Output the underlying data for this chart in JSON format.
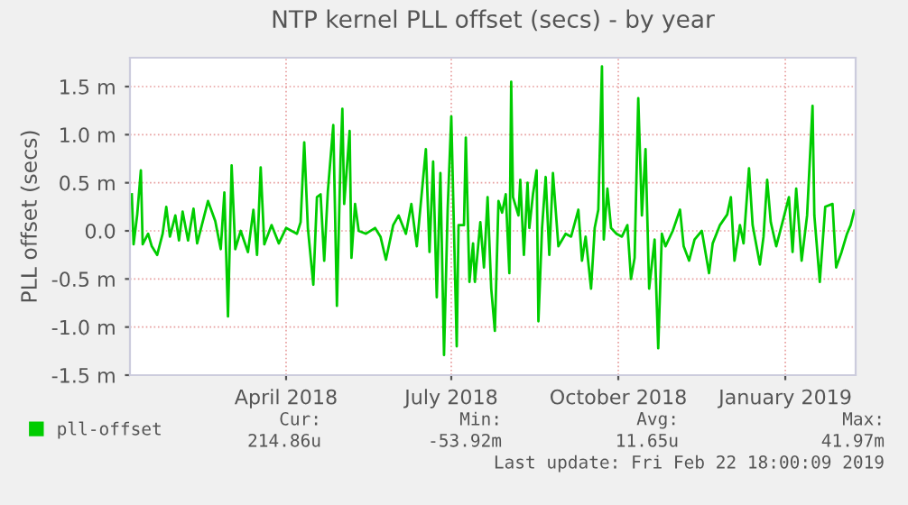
{
  "chart_data": {
    "type": "line",
    "title": "NTP kernel PLL offset (secs) - by year",
    "ylabel": "PLL offset (secs)",
    "xlim": [
      "2018-01-19",
      "2019-02-22T18:00"
    ],
    "xticks": [
      {
        "value": "2018-04-15",
        "label": "April 2018"
      },
      {
        "value": "2018-07-15",
        "label": "July 2018"
      },
      {
        "value": "2018-10-15",
        "label": "October 2018"
      },
      {
        "value": "2019-01-15",
        "label": "January 2019"
      }
    ],
    "ylim": [
      -1.5,
      1.8
    ],
    "yticks": [
      {
        "value": -1.5,
        "label": "-1.5 m"
      },
      {
        "value": -1.0,
        "label": "-1.0 m"
      },
      {
        "value": -0.5,
        "label": "-0.5 m"
      },
      {
        "value": 0,
        "label": "0.0"
      },
      {
        "value": 0.5,
        "label": "0.5 m"
      },
      {
        "value": 1.0,
        "label": "1.0 m"
      },
      {
        "value": 1.5,
        "label": "1.5 m"
      }
    ],
    "grid": true,
    "legend": "bottom left",
    "x": [
      "2018-01-20",
      "2018-01-21",
      "2018-01-23",
      "2018-01-25",
      "2018-01-26",
      "2018-01-29",
      "2018-01-31",
      "2018-02-03",
      "2018-02-06",
      "2018-02-08",
      "2018-02-10",
      "2018-02-13",
      "2018-02-15",
      "2018-02-17",
      "2018-02-20",
      "2018-02-23",
      "2018-02-25",
      "2018-03-03",
      "2018-03-07",
      "2018-03-10",
      "2018-03-12",
      "2018-03-14",
      "2018-03-16",
      "2018-03-18",
      "2018-03-21",
      "2018-03-25",
      "2018-03-28",
      "2018-03-30",
      "2018-04-01",
      "2018-04-03",
      "2018-04-07",
      "2018-04-11",
      "2018-04-15",
      "2018-04-21",
      "2018-04-23",
      "2018-04-25",
      "2018-04-27",
      "2018-04-30",
      "2018-05-02",
      "2018-05-04",
      "2018-05-06",
      "2018-05-08",
      "2018-05-11",
      "2018-05-13",
      "2018-05-15",
      "2018-05-16",
      "2018-05-17",
      "2018-05-20",
      "2018-05-21",
      "2018-05-23",
      "2018-05-25",
      "2018-05-29",
      "2018-06-03",
      "2018-06-06",
      "2018-06-09",
      "2018-06-13",
      "2018-06-16",
      "2018-06-20",
      "2018-06-23",
      "2018-06-26",
      "2018-07-01",
      "2018-07-03",
      "2018-07-05",
      "2018-07-07",
      "2018-07-09",
      "2018-07-11",
      "2018-07-13",
      "2018-07-15",
      "2018-07-18",
      "2018-07-19",
      "2018-07-22",
      "2018-07-23",
      "2018-07-25",
      "2018-07-27",
      "2018-07-28",
      "2018-07-31",
      "2018-08-02",
      "2018-08-04",
      "2018-08-06",
      "2018-08-08",
      "2018-08-10",
      "2018-08-12",
      "2018-08-14",
      "2018-08-16",
      "2018-08-17",
      "2018-08-18",
      "2018-08-21",
      "2018-08-22",
      "2018-08-24",
      "2018-08-26",
      "2018-08-27",
      "2018-08-29",
      "2018-08-31",
      "2018-09-01",
      "2018-09-03",
      "2018-09-05",
      "2018-09-07",
      "2018-09-09",
      "2018-09-12",
      "2018-09-16",
      "2018-09-19",
      "2018-09-23",
      "2018-09-25",
      "2018-09-27",
      "2018-09-30",
      "2018-10-02",
      "2018-10-04",
      "2018-10-06",
      "2018-10-07",
      "2018-10-09",
      "2018-10-11",
      "2018-10-14",
      "2018-10-17",
      "2018-10-20",
      "2018-10-22",
      "2018-10-24",
      "2018-10-26",
      "2018-10-28",
      "2018-10-30",
      "2018-11-01",
      "2018-11-04",
      "2018-11-06",
      "2018-11-08",
      "2018-11-10",
      "2018-11-14",
      "2018-11-18",
      "2018-11-20",
      "2018-11-23",
      "2018-11-26",
      "2018-11-30",
      "2018-12-04",
      "2018-12-06",
      "2018-12-10",
      "2018-12-14",
      "2018-12-16",
      "2018-12-18",
      "2018-12-21",
      "2018-12-23",
      "2018-12-26",
      "2018-12-28",
      "2019-01-01",
      "2019-01-03",
      "2019-01-05",
      "2019-01-07",
      "2019-01-10",
      "2019-01-14",
      "2019-01-17",
      "2019-01-19",
      "2019-01-21",
      "2019-01-24",
      "2019-01-27",
      "2019-01-30",
      "2019-01-31",
      "2019-02-03",
      "2019-02-06",
      "2019-02-10",
      "2019-02-12",
      "2019-02-15",
      "2019-02-18",
      "2019-02-20",
      "2019-02-22"
    ],
    "series": [
      {
        "name": "pll-offset",
        "color": "#00cc00",
        "values": [
          0.38,
          -0.14,
          0.17,
          0.63,
          -0.14,
          -0.03,
          -0.16,
          -0.25,
          -0.03,
          0.25,
          -0.06,
          0.16,
          -0.1,
          0.2,
          -0.1,
          0.23,
          -0.13,
          0.31,
          0.1,
          -0.19,
          0.4,
          -0.89,
          0.68,
          -0.19,
          0,
          -0.22,
          0.22,
          -0.25,
          0.66,
          -0.14,
          0.06,
          -0.13,
          0.03,
          -0.03,
          0.09,
          0.92,
          0.03,
          -0.56,
          0.35,
          0.38,
          -0.31,
          0.41,
          1.1,
          -0.78,
          0.75,
          1.27,
          0.28,
          1.04,
          -0.28,
          0.28,
          0,
          -0.03,
          0.03,
          -0.06,
          -0.3,
          0.06,
          0.16,
          -0.03,
          0.28,
          -0.16,
          0.85,
          -0.22,
          0.72,
          -0.69,
          0.6,
          -1.29,
          0.22,
          1.19,
          -1.2,
          0.06,
          0.06,
          0.97,
          -0.53,
          -0.13,
          -0.53,
          0.09,
          -0.38,
          0.35,
          -0.6,
          -1.04,
          0.31,
          0.19,
          0.38,
          -0.44,
          1.55,
          0.35,
          0.16,
          0.53,
          -0.25,
          0.5,
          0.03,
          0.38,
          0.63,
          -0.94,
          0.03,
          0.56,
          -0.25,
          0.6,
          -0.16,
          -0.03,
          -0.06,
          0.22,
          -0.31,
          -0.06,
          -0.6,
          0.03,
          0.22,
          1.71,
          -0.09,
          0.44,
          0.03,
          -0.03,
          -0.06,
          0.06,
          -0.5,
          -0.28,
          1.38,
          0.16,
          0.85,
          -0.6,
          -0.09,
          -1.22,
          -0.03,
          -0.16,
          0,
          0.22,
          -0.16,
          -0.31,
          -0.09,
          0,
          -0.44,
          -0.13,
          0.06,
          0.17,
          0.35,
          -0.31,
          0.06,
          -0.13,
          0.65,
          0.06,
          -0.35,
          -0.06,
          0.53,
          0.09,
          -0.16,
          0.13,
          0.35,
          -0.22,
          0.44,
          -0.31,
          0.16,
          1.3,
          0.16,
          -0.53,
          0.25,
          0.28,
          -0.38,
          -0.22,
          -0.03,
          0.06,
          0.21
        ]
      }
    ],
    "annotations": [
      "Cur:",
      "Min:",
      "Avg:",
      "Max:",
      "214.86u",
      "-53.92m",
      "11.65u",
      "41.97m",
      "Last update: Fri Feb 22 18:00:09 2019"
    ]
  }
}
